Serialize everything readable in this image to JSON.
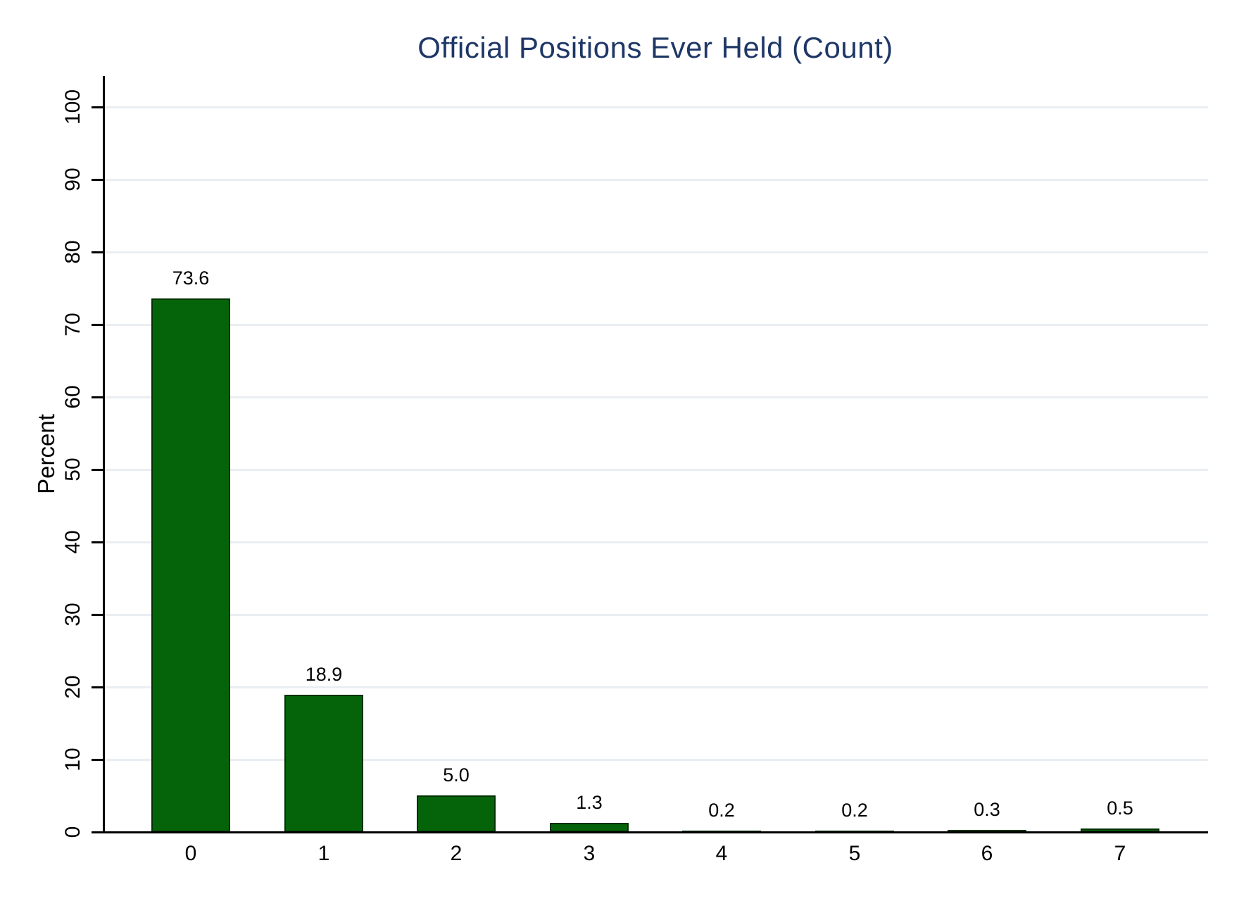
{
  "chart_data": {
    "type": "bar",
    "title": "Official Positions Ever Held (Count)",
    "xlabel": "",
    "ylabel": "Percent",
    "categories": [
      "0",
      "1",
      "2",
      "3",
      "4",
      "5",
      "6",
      "7"
    ],
    "values": [
      73.6,
      18.9,
      5.0,
      1.3,
      0.2,
      0.2,
      0.3,
      0.5
    ],
    "value_labels": [
      "73.6",
      "18.9",
      "5.0",
      "1.3",
      "0.2",
      "0.2",
      "0.3",
      "0.5"
    ],
    "ylim": [
      0,
      100
    ],
    "yticks": [
      0,
      10,
      20,
      30,
      40,
      50,
      60,
      70,
      80,
      90,
      100
    ],
    "grid": true,
    "legend": "none"
  },
  "colors": {
    "title": "#1e3766",
    "bar_fill": "#05640a",
    "bar_border": "#023102",
    "gridline": "#e9eef3",
    "axis": "#000000",
    "text": "#000000",
    "background": "#ffffff"
  }
}
